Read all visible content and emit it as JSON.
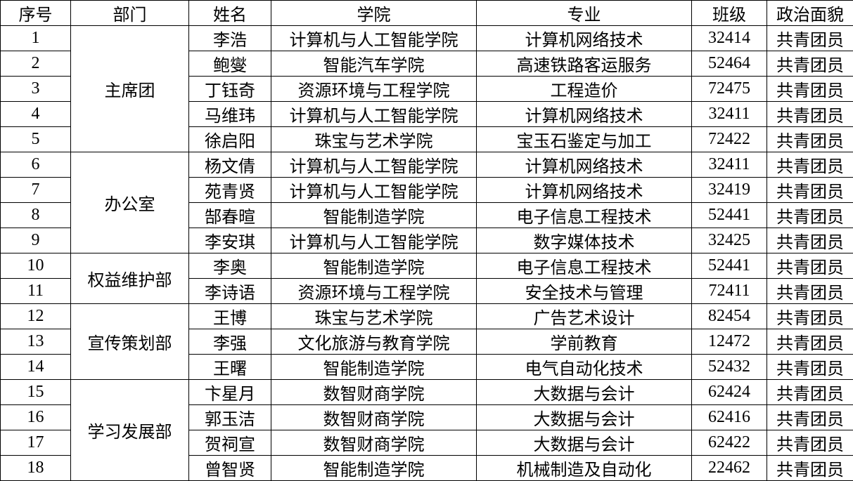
{
  "header": [
    "序号",
    "部门",
    "姓名",
    "学院",
    "专业",
    "班级",
    "政治面貌"
  ],
  "groups": [
    {
      "department": "主席团",
      "members": [
        [
          "1",
          "李浩",
          "计算机与人工智能学院",
          "计算机网络技术",
          "32414",
          "共青团员"
        ],
        [
          "2",
          "鲍燮",
          "智能汽车学院",
          "高速铁路客运服务",
          "52464",
          "共青团员"
        ],
        [
          "3",
          "丁钰奇",
          "资源环境与工程学院",
          "工程造价",
          "72475",
          "共青团员"
        ],
        [
          "4",
          "马维玮",
          "计算机与人工智能学院",
          "计算机网络技术",
          "32411",
          "共青团员"
        ],
        [
          "5",
          "徐启阳",
          "珠宝与艺术学院",
          "宝玉石鉴定与加工",
          "72422",
          "共青团员"
        ]
      ]
    },
    {
      "department": "办公室",
      "members": [
        [
          "6",
          "杨文倩",
          "计算机与人工智能学院",
          "计算机网络技术",
          "32411",
          "共青团员"
        ],
        [
          "7",
          "苑青贤",
          "计算机与人工智能学院",
          "计算机网络技术",
          "32419",
          "共青团员"
        ],
        [
          "8",
          "郜春暄",
          "智能制造学院",
          "电子信息工程技术",
          "52441",
          "共青团员"
        ],
        [
          "9",
          "李安琪",
          "计算机与人工智能学院",
          "数字媒体技术",
          "32425",
          "共青团员"
        ]
      ]
    },
    {
      "department": "权益维护部",
      "members": [
        [
          "10",
          "李奥",
          "智能制造学院",
          "电子信息工程技术",
          "52441",
          "共青团员"
        ],
        [
          "11",
          "李诗语",
          "资源环境与工程学院",
          "安全技术与管理",
          "72411",
          "共青团员"
        ]
      ]
    },
    {
      "department": "宣传策划部",
      "members": [
        [
          "12",
          "王博",
          "珠宝与艺术学院",
          "广告艺术设计",
          "82454",
          "共青团员"
        ],
        [
          "13",
          "李强",
          "文化旅游与教育学院",
          "学前教育",
          "12472",
          "共青团员"
        ],
        [
          "14",
          "王曙",
          "智能制造学院",
          "电气自动化技术",
          "52432",
          "共青团员"
        ]
      ]
    },
    {
      "department": "学习发展部",
      "members": [
        [
          "15",
          "卞星月",
          "数智财商学院",
          "大数据与会计",
          "62424",
          "共青团员"
        ],
        [
          "16",
          "郭玉洁",
          "数智财商学院",
          "大数据与会计",
          "62416",
          "共青团员"
        ],
        [
          "17",
          "贺祠宣",
          "数智财商学院",
          "大数据与会计",
          "62422",
          "共青团员"
        ],
        [
          "18",
          "曾智贤",
          "智能制造学院",
          "机械制造及自动化",
          "22462",
          "共青团员"
        ]
      ]
    }
  ]
}
